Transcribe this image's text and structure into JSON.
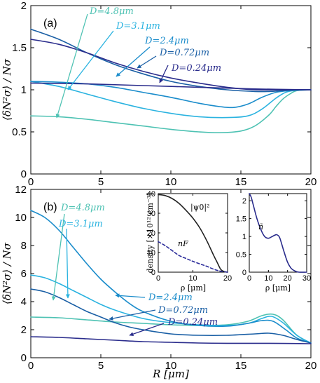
{
  "figure": {
    "xlabel": "R  [μm]",
    "ylabel": "⟨δN²σ⟩ / Nσ"
  },
  "colors": {
    "D=4.8μm": "#4ec2b3",
    "D=3.1μm": "#2bb3e0",
    "D=2.4μm": "#1a8ccb",
    "D=0.72μm": "#1a5fa5",
    "D=0.24μm": "#2a2c8c",
    "psi": "#222222",
    "nF": "#2b2c9a",
    "ntilde": "#2a2c8c"
  },
  "chart_data": [
    {
      "type": "line",
      "panel_label": "(a)",
      "xlabel": "",
      "ylabel": "⟨δN²σ⟩ / Nσ",
      "xlim": [
        0,
        20
      ],
      "ylim": [
        0,
        2
      ],
      "x_ticks": [
        "0",
        "5",
        "10",
        "15",
        "20"
      ],
      "y_ticks": [
        "0",
        "0.5",
        "1",
        "1.5",
        "2"
      ],
      "series": [
        {
          "name": "D=4.8μm",
          "x": [
            0,
            2,
            4,
            6,
            8,
            10,
            12,
            13.5,
            15,
            16,
            17,
            17.5,
            18,
            18.5,
            19,
            20
          ],
          "y": [
            0.69,
            0.68,
            0.65,
            0.61,
            0.57,
            0.53,
            0.5,
            0.49,
            0.51,
            0.57,
            0.7,
            0.8,
            0.89,
            0.95,
            0.99,
            1.0
          ]
        },
        {
          "name": "D=3.1μm",
          "x": [
            0,
            2,
            4,
            6,
            8,
            10,
            12,
            14,
            15.5,
            16.5,
            17.5,
            18.2,
            19,
            20
          ],
          "y": [
            1.1,
            1.04,
            0.95,
            0.86,
            0.78,
            0.72,
            0.68,
            0.67,
            0.69,
            0.77,
            0.9,
            0.97,
            0.995,
            1.0
          ]
        },
        {
          "name": "D=2.4μm",
          "x": [
            0,
            2,
            4,
            6,
            8,
            10,
            12,
            13.5,
            14.5,
            15.5,
            16.5,
            17.5,
            18.5,
            20
          ],
          "y": [
            1.1,
            1.09,
            1.07,
            1.03,
            0.97,
            0.91,
            0.84,
            0.8,
            0.79,
            0.83,
            0.91,
            0.97,
            0.99,
            1.0
          ]
        },
        {
          "name": "D=0.72μm",
          "x": [
            0,
            2,
            4,
            6,
            8,
            10,
            12,
            14,
            16,
            17,
            18,
            19,
            20
          ],
          "y": [
            1.72,
            1.6,
            1.44,
            1.3,
            1.19,
            1.1,
            1.04,
            1.0,
            0.98,
            0.98,
            0.99,
            1.0,
            1.0
          ]
        },
        {
          "name": "D=0.24μm",
          "x": [
            0,
            2,
            4,
            6,
            8,
            10,
            12,
            14,
            16,
            18,
            20
          ],
          "y": [
            1.6,
            1.54,
            1.44,
            1.32,
            1.22,
            1.14,
            1.08,
            1.03,
            1.0,
            1.0,
            1.0
          ]
        },
        {
          "name": "",
          "x": [
            0,
            4,
            8,
            12,
            16,
            20
          ],
          "y": [
            1.08,
            1.07,
            1.05,
            1.03,
            1.01,
            1.0
          ]
        }
      ],
      "annotations": [
        "D=4.8μm",
        "D=3.1μm",
        "D=2.4μm",
        "D=0.72μm",
        "D=0.24μm"
      ]
    },
    {
      "type": "line",
      "panel_label": "(b)",
      "xlabel": "R  [μm]",
      "ylabel": "⟨δN²σ⟩ / Nσ",
      "xlim": [
        0,
        20
      ],
      "ylim": [
        0,
        12
      ],
      "x_ticks": [
        "0",
        "5",
        "10",
        "15",
        "20"
      ],
      "y_ticks": [
        "0",
        "2",
        "4",
        "6",
        "8",
        "10",
        "12"
      ],
      "series": [
        {
          "name": "D=4.8μm",
          "x": [
            0,
            2,
            4,
            6,
            8,
            10,
            12,
            14,
            15.5,
            16.5,
            17.3,
            18,
            19,
            20
          ],
          "y": [
            2.9,
            2.85,
            2.7,
            2.55,
            2.45,
            2.35,
            2.3,
            2.35,
            2.6,
            3.0,
            3.1,
            2.7,
            1.6,
            1.05
          ]
        },
        {
          "name": "D=3.1μm",
          "x": [
            0,
            1,
            2,
            3,
            4,
            5,
            6,
            8,
            10,
            12,
            14,
            15.5,
            16.5,
            17.2,
            18,
            19,
            20
          ],
          "y": [
            5.9,
            5.7,
            5.3,
            4.8,
            4.3,
            3.8,
            3.4,
            2.8,
            2.5,
            2.35,
            2.3,
            2.45,
            2.8,
            2.95,
            2.5,
            1.6,
            1.05
          ]
        },
        {
          "name": "D=2.4μm",
          "x": [
            0,
            1,
            2,
            3,
            4,
            5,
            6,
            7,
            8,
            10,
            12,
            14,
            15.5,
            16.5,
            17.3,
            18.2,
            19,
            20
          ],
          "y": [
            10.5,
            10.0,
            9.1,
            7.9,
            6.7,
            5.6,
            4.7,
            3.9,
            3.3,
            2.6,
            2.3,
            2.25,
            2.45,
            2.65,
            2.6,
            2.0,
            1.4,
            1.05
          ]
        },
        {
          "name": "D=0.72μm",
          "x": [
            0,
            1,
            2,
            3,
            4,
            5,
            6,
            7,
            8,
            10,
            12,
            14,
            16,
            17,
            18,
            19,
            20
          ],
          "y": [
            4.9,
            4.7,
            4.3,
            3.8,
            3.3,
            2.9,
            2.5,
            2.2,
            2.0,
            1.7,
            1.6,
            1.6,
            1.7,
            1.75,
            1.6,
            1.3,
            1.05
          ]
        },
        {
          "name": "D=0.24μm",
          "x": [
            0,
            2,
            4,
            6,
            8,
            10,
            12,
            14,
            16,
            18,
            20
          ],
          "y": [
            1.5,
            1.45,
            1.35,
            1.25,
            1.15,
            1.1,
            1.05,
            1.03,
            1.03,
            1.02,
            1.0
          ]
        }
      ],
      "annotations": [
        "D=4.8μm",
        "D=3.1μm",
        "D=2.4μm",
        "D=0.72μm",
        "D=0.24μm"
      ],
      "insets": [
        {
          "type": "line",
          "xlabel": "ρ  [μm]",
          "ylabel": "density [×10¹² cm⁻³]",
          "xlim": [
            0,
            20
          ],
          "ylim": [
            0,
            40
          ],
          "x_ticks": [
            "0",
            "10",
            "20"
          ],
          "y_ticks": [
            "0",
            "10",
            "20",
            "30",
            "40"
          ],
          "series": [
            {
              "name": "|ψ0|²",
              "style": "solid",
              "x": [
                0,
                2,
                4,
                6,
                8,
                10,
                12,
                14,
                16,
                17,
                18,
                19,
                20
              ],
              "y": [
                39.5,
                39,
                37.5,
                35,
                31.5,
                27.5,
                22.5,
                16,
                8.5,
                5,
                1.5,
                0.3,
                0
              ]
            },
            {
              "name": "nF",
              "style": "dashed",
              "x": [
                0,
                2,
                4,
                6,
                8,
                10,
                12,
                14,
                16,
                18,
                20
              ],
              "y": [
                15.5,
                13.5,
                11,
                8.5,
                7,
                5.5,
                4.2,
                3,
                1.5,
                0.5,
                0
              ]
            }
          ]
        },
        {
          "type": "line",
          "xlabel": "ρ  [μm]",
          "ylabel": "",
          "xlim": [
            0,
            30
          ],
          "ylim": [
            0,
            2.2
          ],
          "x_ticks": [
            "0",
            "10",
            "20",
            "30"
          ],
          "y_ticks": [
            "0",
            "0.5",
            "1",
            "1.5",
            "2"
          ],
          "series": [
            {
              "name": "ñ",
              "style": "solid",
              "x": [
                0,
                1,
                2,
                4,
                6,
                8,
                10,
                12,
                14,
                15,
                16,
                18,
                20,
                22,
                24,
                26,
                30
              ],
              "y": [
                2.2,
                2.1,
                1.9,
                1.5,
                1.2,
                1.0,
                0.95,
                1.0,
                1.05,
                1.03,
                0.95,
                0.6,
                0.28,
                0.1,
                0.03,
                0.0,
                0.0
              ]
            }
          ]
        }
      ]
    }
  ]
}
